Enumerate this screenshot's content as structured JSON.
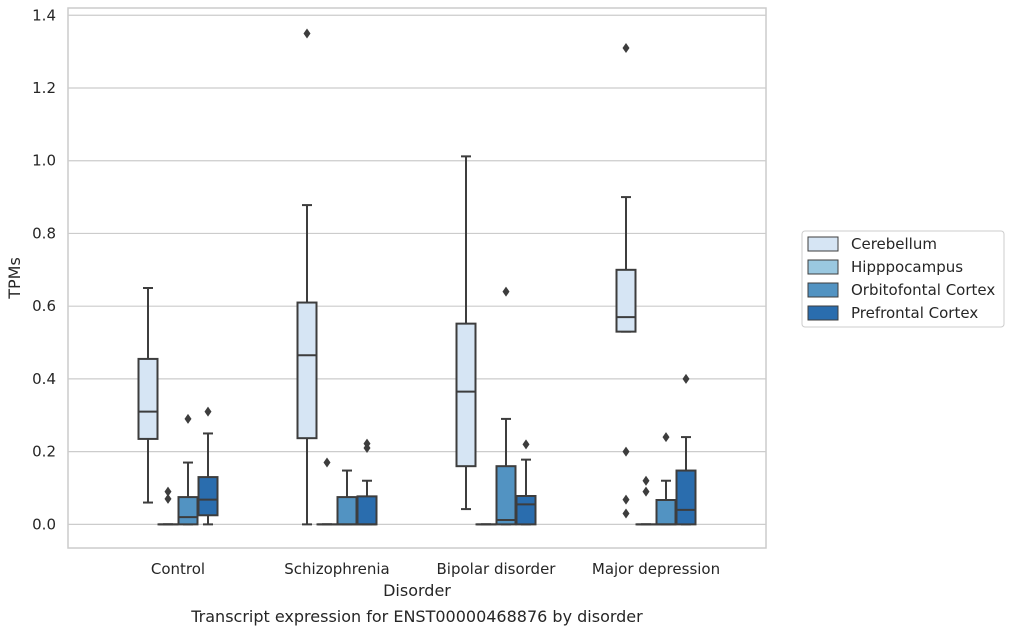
{
  "caption": "Transcript expression for ENST00000468876 by disorder",
  "chart_data": {
    "type": "box",
    "title": "",
    "xlabel": "Disorder",
    "ylabel": "TPMs",
    "ylim": [
      -0.065,
      1.42
    ],
    "yticks": [
      0.0,
      0.2,
      0.4,
      0.6,
      0.8,
      1.0,
      1.2,
      1.4
    ],
    "ytick_labels": [
      "0.0",
      "0.2",
      "0.4",
      "0.6",
      "0.8",
      "1.0",
      "1.2",
      "1.4"
    ],
    "grid": true,
    "legend_position": "right",
    "categories": [
      "Control",
      "Schizophrenia",
      "Bipolar disorder",
      "Major depression"
    ],
    "series": [
      {
        "name": "Cerebellum",
        "color": "#d6e5f4",
        "boxes": [
          {
            "whisker_low": 0.06,
            "q1": 0.235,
            "median": 0.31,
            "q3": 0.455,
            "whisker_high": 0.65,
            "outliers": []
          },
          {
            "whisker_low": 0.0,
            "q1": 0.237,
            "median": 0.465,
            "q3": 0.61,
            "whisker_high": 0.878,
            "outliers": [
              1.35
            ]
          },
          {
            "whisker_low": 0.042,
            "q1": 0.16,
            "median": 0.365,
            "q3": 0.552,
            "whisker_high": 1.012,
            "outliers": []
          },
          {
            "whisker_low": 0.53,
            "q1": 0.53,
            "median": 0.57,
            "q3": 0.7,
            "whisker_high": 0.9,
            "outliers": [
              1.31,
              0.2,
              0.068,
              0.03
            ]
          }
        ]
      },
      {
        "name": "Hipppocampus",
        "color": "#9ac8e0",
        "boxes": [
          {
            "whisker_low": 0.0,
            "q1": 0.0,
            "median": 0.0,
            "q3": 0.0,
            "whisker_high": 0.0,
            "outliers": [
              0.09,
              0.07
            ]
          },
          {
            "whisker_low": 0.0,
            "q1": 0.0,
            "median": 0.0,
            "q3": 0.0,
            "whisker_high": 0.0,
            "outliers": [
              0.17
            ]
          },
          {
            "whisker_low": 0.0,
            "q1": 0.0,
            "median": 0.0,
            "q3": 0.0,
            "whisker_high": 0.0,
            "outliers": []
          },
          {
            "whisker_low": 0.0,
            "q1": 0.0,
            "median": 0.0,
            "q3": 0.0,
            "whisker_high": 0.0,
            "outliers": [
              0.12,
              0.09
            ]
          }
        ]
      },
      {
        "name": "Orbitofontal Cortex",
        "color": "#5293c2",
        "boxes": [
          {
            "whisker_low": 0.0,
            "q1": 0.0,
            "median": 0.02,
            "q3": 0.075,
            "whisker_high": 0.17,
            "outliers": [
              0.29
            ]
          },
          {
            "whisker_low": 0.0,
            "q1": 0.0,
            "median": 0.0,
            "q3": 0.075,
            "whisker_high": 0.148,
            "outliers": []
          },
          {
            "whisker_low": 0.0,
            "q1": 0.0,
            "median": 0.012,
            "q3": 0.16,
            "whisker_high": 0.29,
            "outliers": [
              0.64
            ]
          },
          {
            "whisker_low": 0.0,
            "q1": 0.0,
            "median": 0.0,
            "q3": 0.067,
            "whisker_high": 0.12,
            "outliers": [
              0.24
            ]
          }
        ]
      },
      {
        "name": "Prefrontal Cortex",
        "color": "#2a6dae",
        "boxes": [
          {
            "whisker_low": 0.0,
            "q1": 0.025,
            "median": 0.068,
            "q3": 0.13,
            "whisker_high": 0.25,
            "outliers": [
              0.31
            ]
          },
          {
            "whisker_low": 0.0,
            "q1": 0.0,
            "median": 0.0,
            "q3": 0.077,
            "whisker_high": 0.12,
            "outliers": [
              0.222,
              0.21
            ]
          },
          {
            "whisker_low": 0.0,
            "q1": 0.0,
            "median": 0.055,
            "q3": 0.078,
            "whisker_high": 0.178,
            "outliers": [
              0.22
            ]
          },
          {
            "whisker_low": 0.0,
            "q1": 0.0,
            "median": 0.04,
            "q3": 0.148,
            "whisker_high": 0.24,
            "outliers": [
              0.4
            ]
          }
        ]
      }
    ]
  }
}
